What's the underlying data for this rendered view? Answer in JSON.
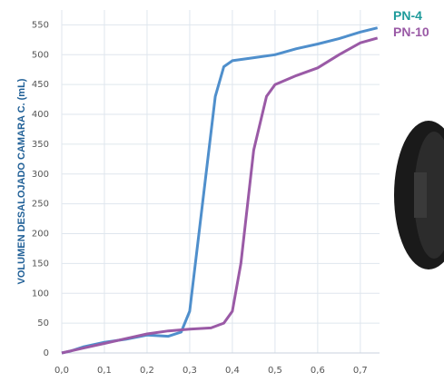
{
  "chart_data": {
    "type": "line",
    "y_label": "VOLUMEN DESALOJADO CAMARA C. (mL)",
    "xlim": [
      0,
      0.745
    ],
    "ylim": [
      0,
      575
    ],
    "xticks": [
      {
        "value": 0,
        "label": "0,0"
      },
      {
        "value": 0.1,
        "label": "0,1"
      },
      {
        "value": 0.2,
        "label": "0,2"
      },
      {
        "value": 0.3,
        "label": "0,3"
      },
      {
        "value": 0.4,
        "label": "0,4"
      },
      {
        "value": 0.5,
        "label": "0,5"
      },
      {
        "value": 0.6,
        "label": "0,6"
      },
      {
        "value": 0.7,
        "label": "0,7"
      }
    ],
    "yticks": [
      0,
      50,
      100,
      150,
      200,
      250,
      300,
      350,
      400,
      450,
      500,
      550
    ],
    "grid": true,
    "series": [
      {
        "name": "PN-4",
        "color": "#4f8fcc",
        "label_color": "#1e9b9b",
        "x": [
          0,
          0.02,
          0.05,
          0.1,
          0.15,
          0.2,
          0.25,
          0.28,
          0.3,
          0.33,
          0.36,
          0.38,
          0.4,
          0.45,
          0.5,
          0.55,
          0.6,
          0.65,
          0.7,
          0.74
        ],
        "values": [
          0,
          3,
          10,
          18,
          23,
          30,
          28,
          35,
          70,
          250,
          430,
          480,
          490,
          495,
          500,
          510,
          518,
          527,
          538,
          545
        ]
      },
      {
        "name": "PN-10",
        "color": "#9a5aa6",
        "label_color": "#9a5aa6",
        "x": [
          0,
          0.05,
          0.1,
          0.15,
          0.2,
          0.25,
          0.3,
          0.35,
          0.38,
          0.4,
          0.42,
          0.45,
          0.48,
          0.5,
          0.55,
          0.6,
          0.65,
          0.7,
          0.74
        ],
        "values": [
          0,
          8,
          16,
          24,
          32,
          37,
          40,
          42,
          50,
          70,
          150,
          340,
          430,
          450,
          465,
          478,
          500,
          520,
          528
        ]
      }
    ]
  }
}
